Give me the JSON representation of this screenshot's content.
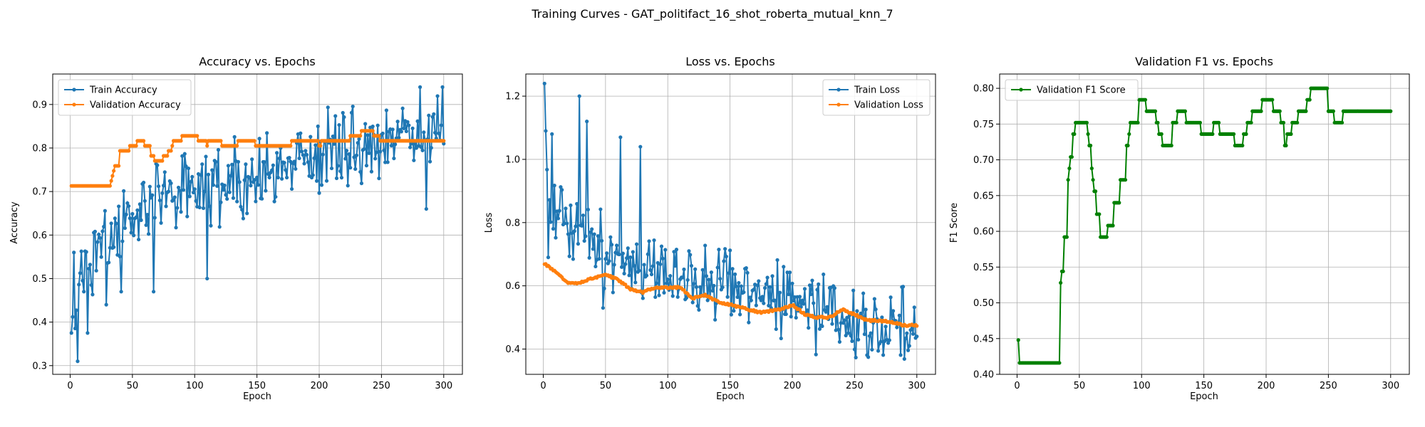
{
  "figure": {
    "suptitle": "Training Curves - GAT_politifact_16_shot_roberta_mutual_knn_7"
  },
  "chart_data": [
    {
      "type": "line",
      "title": "Accuracy vs. Epochs",
      "xlabel": "Epoch",
      "ylabel": "Accuracy",
      "xlim": [
        -14,
        315
      ],
      "ylim": [
        0.28,
        0.97
      ],
      "xticks": [
        0,
        50,
        100,
        150,
        200,
        250,
        300
      ],
      "yticks": [
        0.3,
        0.4,
        0.5,
        0.6,
        0.7,
        0.8,
        0.9
      ],
      "grid": true,
      "legend_position": "upper-left",
      "series": [
        {
          "name": "Train Accuracy",
          "color": "#1f77b4",
          "generated": "noisy",
          "anchors": [
            [
              1,
              0.38
            ],
            [
              10,
              0.53
            ],
            [
              20,
              0.55
            ],
            [
              30,
              0.58
            ],
            [
              40,
              0.63
            ],
            [
              60,
              0.66
            ],
            [
              80,
              0.69
            ],
            [
              100,
              0.7
            ],
            [
              120,
              0.72
            ],
            [
              150,
              0.74
            ],
            [
              180,
              0.77
            ],
            [
              200,
              0.79
            ],
            [
              230,
              0.8
            ],
            [
              260,
              0.82
            ],
            [
              300,
              0.84
            ]
          ],
          "noise": 0.085,
          "clip": [
            0.31,
            0.94
          ],
          "fixed": [
            [
              1,
              0.375
            ],
            [
              3,
              0.56
            ],
            [
              6,
              0.31
            ],
            [
              14,
              0.375
            ],
            [
              29,
              0.44
            ],
            [
              41,
              0.47
            ],
            [
              67,
              0.47
            ],
            [
              110,
              0.5
            ],
            [
              281,
              0.94
            ],
            [
              286,
              0.66
            ],
            [
              299,
              0.94
            ],
            [
              300,
              0.81
            ]
          ]
        },
        {
          "name": "Validation Accuracy",
          "color": "#ff7f0e",
          "generated": "step",
          "anchors": [
            [
              1,
              0.716
            ],
            [
              32,
              0.716
            ],
            [
              36,
              0.76
            ],
            [
              42,
              0.81
            ],
            [
              50,
              0.8
            ],
            [
              56,
              0.82
            ],
            [
              62,
              0.8
            ],
            [
              68,
              0.77
            ],
            [
              75,
              0.78
            ],
            [
              82,
              0.81
            ],
            [
              90,
              0.825
            ],
            [
              100,
              0.825
            ],
            [
              110,
              0.81
            ],
            [
              115,
              0.825
            ],
            [
              125,
              0.8
            ],
            [
              135,
              0.82
            ],
            [
              150,
              0.81
            ],
            [
              160,
              0.8
            ],
            [
              175,
              0.81
            ],
            [
              190,
              0.82
            ],
            [
              200,
              0.81
            ],
            [
              220,
              0.82
            ],
            [
              240,
              0.84
            ],
            [
              250,
              0.82
            ],
            [
              300,
              0.822
            ]
          ],
          "step": 0.0115
        }
      ]
    },
    {
      "type": "line",
      "title": "Loss vs. Epochs",
      "xlabel": "Epoch",
      "ylabel": "Loss",
      "xlim": [
        -14,
        315
      ],
      "ylim": [
        0.32,
        1.27
      ],
      "xticks": [
        0,
        50,
        100,
        150,
        200,
        250,
        300
      ],
      "yticks": [
        0.4,
        0.6,
        0.8,
        1.0,
        1.2
      ],
      "grid": true,
      "legend_position": "upper-right",
      "series": [
        {
          "name": "Train Loss",
          "color": "#1f77b4",
          "generated": "noisy",
          "anchors": [
            [
              1,
              1.0
            ],
            [
              5,
              0.86
            ],
            [
              15,
              0.8
            ],
            [
              30,
              0.76
            ],
            [
              50,
              0.7
            ],
            [
              75,
              0.66
            ],
            [
              100,
              0.64
            ],
            [
              130,
              0.61
            ],
            [
              160,
              0.58
            ],
            [
              190,
              0.55
            ],
            [
              220,
              0.51
            ],
            [
              260,
              0.48
            ],
            [
              300,
              0.47
            ]
          ],
          "noise": 0.11,
          "clip": [
            0.36,
            1.24
          ],
          "fixed": [
            [
              1,
              1.24
            ],
            [
              2,
              1.09
            ],
            [
              4,
              0.69
            ],
            [
              7,
              1.08
            ],
            [
              29,
              1.2
            ],
            [
              35,
              1.12
            ],
            [
              48,
              0.53
            ],
            [
              62,
              1.07
            ],
            [
              78,
              1.04
            ],
            [
              300,
              0.44
            ]
          ]
        },
        {
          "name": "Validation Loss",
          "color": "#ff7f0e",
          "generated": "smooth",
          "anchors": [
            [
              1,
              0.67
            ],
            [
              10,
              0.645
            ],
            [
              20,
              0.61
            ],
            [
              30,
              0.61
            ],
            [
              40,
              0.625
            ],
            [
              50,
              0.635
            ],
            [
              60,
              0.62
            ],
            [
              70,
              0.59
            ],
            [
              80,
              0.58
            ],
            [
              90,
              0.595
            ],
            [
              100,
              0.595
            ],
            [
              110,
              0.595
            ],
            [
              120,
              0.56
            ],
            [
              130,
              0.57
            ],
            [
              140,
              0.55
            ],
            [
              150,
              0.54
            ],
            [
              160,
              0.53
            ],
            [
              175,
              0.515
            ],
            [
              190,
              0.525
            ],
            [
              200,
              0.54
            ],
            [
              210,
              0.51
            ],
            [
              220,
              0.5
            ],
            [
              230,
              0.5
            ],
            [
              240,
              0.525
            ],
            [
              250,
              0.51
            ],
            [
              260,
              0.49
            ],
            [
              270,
              0.49
            ],
            [
              280,
              0.485
            ],
            [
              290,
              0.475
            ],
            [
              300,
              0.475
            ]
          ]
        }
      ]
    },
    {
      "type": "line",
      "title": "Validation F1 vs. Epochs",
      "xlabel": "Epoch",
      "ylabel": "F1 Score",
      "xlim": [
        -14,
        315
      ],
      "ylim": [
        0.4,
        0.82
      ],
      "xticks": [
        0,
        50,
        100,
        150,
        200,
        250,
        300
      ],
      "yticks": [
        0.4,
        0.45,
        0.5,
        0.55,
        0.6,
        0.65,
        0.7,
        0.75,
        0.8
      ],
      "grid": true,
      "legend_position": "upper-left",
      "series": [
        {
          "name": "Validation F1 Score",
          "color": "#008000",
          "generated": "step",
          "anchors": [
            [
              1,
              0.446
            ],
            [
              2,
              0.418
            ],
            [
              33,
              0.418
            ],
            [
              35,
              0.52
            ],
            [
              40,
              0.65
            ],
            [
              45,
              0.74
            ],
            [
              50,
              0.753
            ],
            [
              55,
              0.765
            ],
            [
              60,
              0.69
            ],
            [
              65,
              0.6
            ],
            [
              70,
              0.58
            ],
            [
              75,
              0.62
            ],
            [
              82,
              0.65
            ],
            [
              86,
              0.71
            ],
            [
              90,
              0.74
            ],
            [
              95,
              0.77
            ],
            [
              100,
              0.78
            ],
            [
              105,
              0.765
            ],
            [
              110,
              0.765
            ],
            [
              115,
              0.73
            ],
            [
              120,
              0.72
            ],
            [
              125,
              0.75
            ],
            [
              130,
              0.768
            ],
            [
              140,
              0.75
            ],
            [
              150,
              0.735
            ],
            [
              160,
              0.75
            ],
            [
              170,
              0.728
            ],
            [
              180,
              0.72
            ],
            [
              190,
              0.768
            ],
            [
              200,
              0.78
            ],
            [
              210,
              0.768
            ],
            [
              215,
              0.72
            ],
            [
              220,
              0.75
            ],
            [
              230,
              0.768
            ],
            [
              235,
              0.8
            ],
            [
              245,
              0.8
            ],
            [
              250,
              0.77
            ],
            [
              258,
              0.752
            ],
            [
              265,
              0.768
            ],
            [
              300,
              0.768
            ]
          ],
          "step": 0.016
        }
      ]
    }
  ]
}
